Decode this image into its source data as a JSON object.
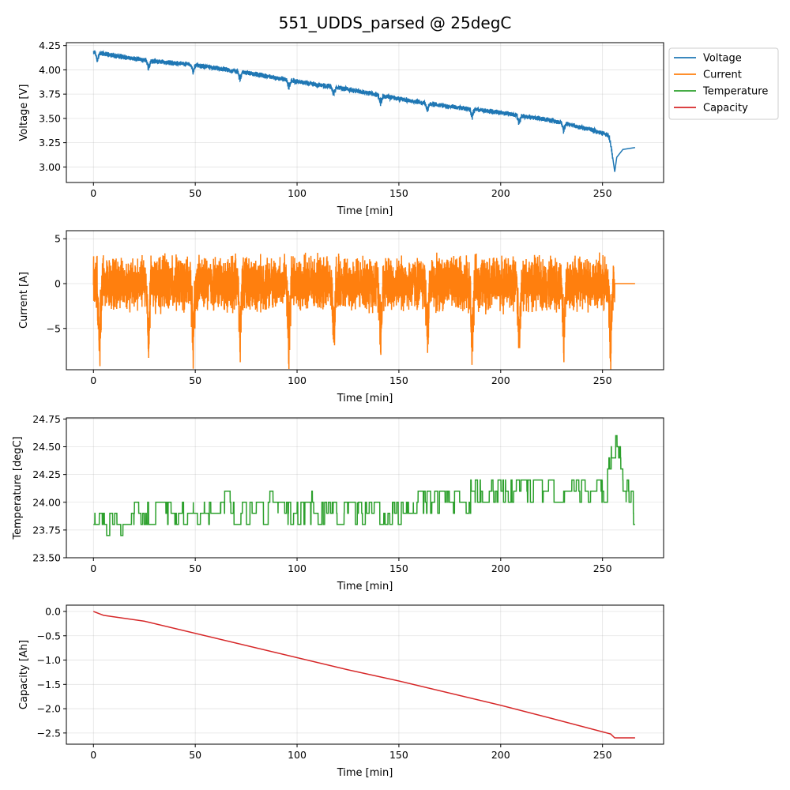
{
  "figure": {
    "title": "551_UDDS_parsed @ 25degC"
  },
  "legend": {
    "placement": "outside-top-right",
    "entries": [
      {
        "label": "Voltage",
        "color": "#1f77b4"
      },
      {
        "label": "Current",
        "color": "#ff7f0e"
      },
      {
        "label": "Temperature",
        "color": "#2ca02c"
      },
      {
        "label": "Capacity",
        "color": "#d62728"
      }
    ]
  },
  "chart_data": [
    {
      "type": "line",
      "series": [
        {
          "name": "Voltage",
          "color": "#1f77b4"
        }
      ],
      "xlabel": "Time [min]",
      "ylabel": "Voltage [V]",
      "xlim": [
        -13.3,
        280
      ],
      "ylim": [
        2.84,
        4.28
      ],
      "xticks": [
        0,
        50,
        100,
        150,
        200,
        250
      ],
      "yticks": [
        3.0,
        3.25,
        3.5,
        3.75,
        4.0,
        4.25
      ],
      "ytick_labels": [
        "3.00",
        "3.25",
        "3.50",
        "3.75",
        "4.00",
        "4.25"
      ],
      "grid": true,
      "trend_points": [
        [
          0,
          4.18
        ],
        [
          25,
          4.1
        ],
        [
          50,
          4.05
        ],
        [
          75,
          3.97
        ],
        [
          100,
          3.88
        ],
        [
          125,
          3.8
        ],
        [
          150,
          3.7
        ],
        [
          175,
          3.62
        ],
        [
          200,
          3.56
        ],
        [
          225,
          3.48
        ],
        [
          245,
          3.38
        ],
        [
          254,
          3.32
        ],
        [
          255,
          3.1
        ],
        [
          256,
          2.95
        ],
        [
          257,
          3.1
        ],
        [
          260,
          3.18
        ],
        [
          266,
          3.2
        ]
      ],
      "dip_times": [
        2,
        27,
        49,
        72,
        96,
        118,
        141,
        164,
        186,
        209,
        231,
        254
      ],
      "dip_depth": 0.1,
      "noise_amplitude": 0.03,
      "active_until": 255
    },
    {
      "type": "line",
      "series": [
        {
          "name": "Current",
          "color": "#ff7f0e"
        }
      ],
      "xlabel": "Time [min]",
      "ylabel": "Current [A]",
      "xlim": [
        -13.3,
        280
      ],
      "ylim": [
        -9.6,
        5.9
      ],
      "xticks": [
        0,
        50,
        100,
        150,
        200,
        250
      ],
      "yticks": [
        -5,
        0,
        5
      ],
      "ytick_labels": [
        "−5",
        "0",
        "5"
      ],
      "grid": true,
      "trend_points": [
        [
          0,
          0
        ],
        [
          255,
          0
        ],
        [
          256,
          0
        ],
        [
          266,
          0
        ]
      ],
      "dip_times": [
        3,
        27,
        49,
        72,
        96,
        118,
        141,
        164,
        186,
        209,
        231,
        254
      ],
      "dip_depth": 8.5,
      "noise_amplitude": 3.5,
      "active_until": 256
    },
    {
      "type": "line",
      "series": [
        {
          "name": "Temperature",
          "color": "#2ca02c"
        }
      ],
      "xlabel": "Time [min]",
      "ylabel": "Temperature [degC]",
      "xlim": [
        -13.3,
        280
      ],
      "ylim": [
        23.5,
        24.76
      ],
      "xticks": [
        0,
        50,
        100,
        150,
        200,
        250
      ],
      "yticks": [
        23.5,
        23.75,
        24.0,
        24.25,
        24.5,
        24.75
      ],
      "ytick_labels": [
        "23.50",
        "23.75",
        "24.00",
        "24.25",
        "24.50",
        "24.75"
      ],
      "grid": true,
      "trend_points": [
        [
          0,
          23.82
        ],
        [
          20,
          23.88
        ],
        [
          45,
          23.9
        ],
        [
          75,
          23.95
        ],
        [
          100,
          23.95
        ],
        [
          130,
          23.93
        ],
        [
          150,
          23.92
        ],
        [
          165,
          24.0
        ],
        [
          190,
          24.05
        ],
        [
          210,
          24.12
        ],
        [
          230,
          24.1
        ],
        [
          250,
          24.1
        ],
        [
          256,
          24.55
        ],
        [
          258,
          24.4
        ],
        [
          262,
          24.1
        ],
        [
          266,
          23.9
        ]
      ],
      "dip_times": [],
      "dip_depth": 0,
      "noise_amplitude": 0.08,
      "quantization": 0.1,
      "active_until": 266
    },
    {
      "type": "line",
      "series": [
        {
          "name": "Capacity",
          "color": "#d62728"
        }
      ],
      "xlabel": "Time [min]",
      "ylabel": "Capacity [Ah]",
      "xlim": [
        -13.3,
        280
      ],
      "ylim": [
        -2.73,
        0.13
      ],
      "xticks": [
        0,
        50,
        100,
        150,
        200,
        250
      ],
      "yticks": [
        -2.5,
        -2.0,
        -1.5,
        -1.0,
        -0.5,
        0.0
      ],
      "ytick_labels": [
        "−2.5",
        "−2.0",
        "−1.5",
        "−1.0",
        "−0.5",
        "0.0"
      ],
      "grid": true,
      "trend_points": [
        [
          0,
          0.0
        ],
        [
          5,
          -0.08
        ],
        [
          25,
          -0.2
        ],
        [
          50,
          -0.45
        ],
        [
          75,
          -0.7
        ],
        [
          100,
          -0.95
        ],
        [
          125,
          -1.2
        ],
        [
          150,
          -1.43
        ],
        [
          175,
          -1.68
        ],
        [
          200,
          -1.93
        ],
        [
          225,
          -2.2
        ],
        [
          254,
          -2.52
        ],
        [
          256,
          -2.6
        ],
        [
          266,
          -2.6
        ]
      ],
      "dip_times": [],
      "dip_depth": 0,
      "noise_amplitude": 0,
      "active_until": 256
    }
  ]
}
